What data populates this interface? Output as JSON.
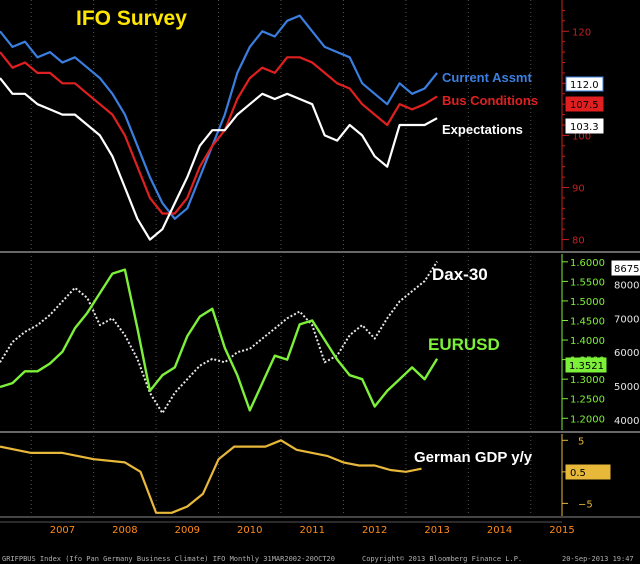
{
  "colors": {
    "background": "#000000",
    "current_assmt": "#3a7fe0",
    "bus_conditions": "#e02020",
    "expectations": "#ffffff",
    "ifo_axis": "#c42020",
    "dax": "#e6e6e6",
    "eurusd": "#7df03a",
    "gdp": "#e8b83a",
    "title_yellow": "#ffe600"
  },
  "chart_data": [
    {
      "type": "line",
      "title": "IFO Survey",
      "x_range": [
        2006.5,
        2015.5
      ],
      "ylim": [
        78,
        126
      ],
      "yticks": [
        80,
        90,
        100,
        110,
        120
      ],
      "series": [
        {
          "name": "Current Assmt",
          "last_value_label": "112.0",
          "x": [
            2006.5,
            2006.7,
            2006.9,
            2007.1,
            2007.3,
            2007.5,
            2007.7,
            2007.9,
            2008.1,
            2008.3,
            2008.5,
            2008.7,
            2008.9,
            2009.1,
            2009.3,
            2009.5,
            2009.7,
            2009.9,
            2010.1,
            2010.3,
            2010.5,
            2010.7,
            2010.9,
            2011.1,
            2011.3,
            2011.5,
            2011.7,
            2011.9,
            2012.1,
            2012.3,
            2012.5,
            2012.7,
            2012.9,
            2013.1,
            2013.3,
            2013.5
          ],
          "values": [
            120,
            117,
            118,
            115,
            116,
            114,
            115,
            113,
            111,
            108,
            104,
            98,
            92,
            87,
            84,
            86,
            92,
            98,
            104,
            112,
            117,
            120,
            119,
            122,
            123,
            120,
            117,
            116,
            115,
            110,
            108,
            106,
            110,
            108,
            109,
            112
          ]
        },
        {
          "name": "Bus Conditions",
          "last_value_label": "107.5",
          "x": [
            2006.5,
            2006.7,
            2006.9,
            2007.1,
            2007.3,
            2007.5,
            2007.7,
            2007.9,
            2008.1,
            2008.3,
            2008.5,
            2008.7,
            2008.9,
            2009.1,
            2009.3,
            2009.5,
            2009.7,
            2009.9,
            2010.1,
            2010.3,
            2010.5,
            2010.7,
            2010.9,
            2011.1,
            2011.3,
            2011.5,
            2011.7,
            2011.9,
            2012.1,
            2012.3,
            2012.5,
            2012.7,
            2012.9,
            2013.1,
            2013.3,
            2013.5
          ],
          "values": [
            116,
            113,
            114,
            112,
            112,
            110,
            110,
            108,
            106,
            104,
            100,
            94,
            88,
            85,
            85,
            88,
            94,
            98,
            101,
            107,
            111,
            113,
            112,
            115,
            115,
            114,
            112,
            110,
            109,
            106,
            104,
            102,
            106,
            105,
            106,
            107.5
          ]
        },
        {
          "name": "Expectations",
          "last_value_label": "103.3",
          "x": [
            2006.5,
            2006.7,
            2006.9,
            2007.1,
            2007.3,
            2007.5,
            2007.7,
            2007.9,
            2008.1,
            2008.3,
            2008.5,
            2008.7,
            2008.9,
            2009.1,
            2009.3,
            2009.5,
            2009.7,
            2009.9,
            2010.1,
            2010.3,
            2010.5,
            2010.7,
            2010.9,
            2011.1,
            2011.3,
            2011.5,
            2011.7,
            2011.9,
            2012.1,
            2012.3,
            2012.5,
            2012.7,
            2012.9,
            2013.1,
            2013.3,
            2013.5
          ],
          "values": [
            111,
            108,
            108,
            106,
            105,
            104,
            104,
            102,
            100,
            96,
            90,
            84,
            80,
            82,
            87,
            92,
            98,
            101,
            101,
            104,
            106,
            108,
            107,
            108,
            107,
            106,
            100,
            99,
            102,
            100,
            96,
            94,
            102,
            102,
            102,
            103.3
          ]
        }
      ]
    },
    {
      "type": "line",
      "x_range": [
        2006.5,
        2015.5
      ],
      "left_axis": {
        "label": "EURUSD",
        "ylim": [
          1.17,
          1.62
        ],
        "yticks": [
          1.2,
          1.25,
          1.3,
          1.35,
          1.4,
          1.45,
          1.5,
          1.55,
          1.6
        ]
      },
      "right_axis": {
        "label": "Dax-30",
        "ylim": [
          3700,
          8900
        ],
        "yticks": [
          4000,
          5000,
          6000,
          7000,
          8000
        ]
      },
      "series": [
        {
          "name": "Dax-30",
          "axis": "right",
          "last_value_label": "8675",
          "x": [
            2006.5,
            2006.7,
            2006.9,
            2007.1,
            2007.3,
            2007.5,
            2007.7,
            2007.9,
            2008.1,
            2008.3,
            2008.5,
            2008.7,
            2008.9,
            2009.1,
            2009.3,
            2009.5,
            2009.7,
            2009.9,
            2010.1,
            2010.3,
            2010.5,
            2010.7,
            2010.9,
            2011.1,
            2011.3,
            2011.5,
            2011.7,
            2011.9,
            2012.1,
            2012.3,
            2012.5,
            2012.7,
            2012.9,
            2013.1,
            2013.3,
            2013.5
          ],
          "values": [
            5700,
            6300,
            6600,
            6800,
            7100,
            7500,
            7900,
            7600,
            6800,
            7000,
            6500,
            5800,
            4800,
            4200,
            4800,
            5200,
            5600,
            5800,
            5700,
            6000,
            6100,
            6400,
            6700,
            7000,
            7200,
            6800,
            5700,
            5900,
            6500,
            6800,
            6400,
            7000,
            7500,
            7800,
            8100,
            8675
          ]
        },
        {
          "name": "EURUSD",
          "axis": "left",
          "last_value_label": "1.3521",
          "x": [
            2006.5,
            2006.7,
            2006.9,
            2007.1,
            2007.3,
            2007.5,
            2007.7,
            2007.9,
            2008.1,
            2008.3,
            2008.5,
            2008.7,
            2008.9,
            2009.1,
            2009.3,
            2009.5,
            2009.7,
            2009.9,
            2010.1,
            2010.3,
            2010.5,
            2010.7,
            2010.9,
            2011.1,
            2011.3,
            2011.5,
            2011.7,
            2011.9,
            2012.1,
            2012.3,
            2012.5,
            2012.7,
            2012.9,
            2013.1,
            2013.3,
            2013.5
          ],
          "values": [
            1.28,
            1.29,
            1.32,
            1.32,
            1.34,
            1.37,
            1.43,
            1.47,
            1.52,
            1.57,
            1.58,
            1.43,
            1.27,
            1.31,
            1.33,
            1.41,
            1.46,
            1.48,
            1.38,
            1.31,
            1.22,
            1.29,
            1.36,
            1.35,
            1.44,
            1.45,
            1.4,
            1.35,
            1.31,
            1.3,
            1.23,
            1.27,
            1.3,
            1.33,
            1.3,
            1.3521
          ]
        }
      ]
    },
    {
      "type": "line",
      "x_range": [
        2006.5,
        2015.5
      ],
      "ylim": [
        -7,
        6
      ],
      "yticks": [
        -5,
        0,
        5
      ],
      "series": [
        {
          "name": "German GDP y/y",
          "last_value_label": "0.5",
          "x": [
            2006.5,
            2007.0,
            2007.5,
            2008.0,
            2008.5,
            2008.75,
            2009.0,
            2009.25,
            2009.5,
            2009.75,
            2010.0,
            2010.25,
            2010.5,
            2010.75,
            2011.0,
            2011.25,
            2011.5,
            2011.75,
            2012.0,
            2012.25,
            2012.5,
            2012.75,
            2013.0,
            2013.25
          ],
          "values": [
            4,
            3,
            3,
            2,
            1.5,
            0,
            -6.5,
            -6.5,
            -5.5,
            -3.5,
            2,
            4,
            4,
            4,
            5,
            3.5,
            3,
            2.5,
            1.5,
            1,
            1,
            0.3,
            0,
            0.5
          ]
        }
      ]
    }
  ],
  "xaxis": {
    "year_labels": [
      "2007",
      "2008",
      "2009",
      "2010",
      "2011",
      "2012",
      "2013",
      "2014",
      "2015"
    ]
  },
  "labels": {
    "ifo_title": "IFO Survey",
    "current": "Current Assmt",
    "bus": "Bus Conditions",
    "expectations": "Expectations",
    "dax": "Dax-30",
    "eurusd": "EURUSD",
    "gdp": "German GDP y/y"
  },
  "footer": {
    "left": "GRIFPBUS Index (Ifo Pan Germany Business Climate) IFO  Monthly 31MAR2002-20OCT20",
    "center": "Copyright© 2013 Bloomberg Finance L.P.",
    "right": "20-Sep-2013 19:47"
  }
}
